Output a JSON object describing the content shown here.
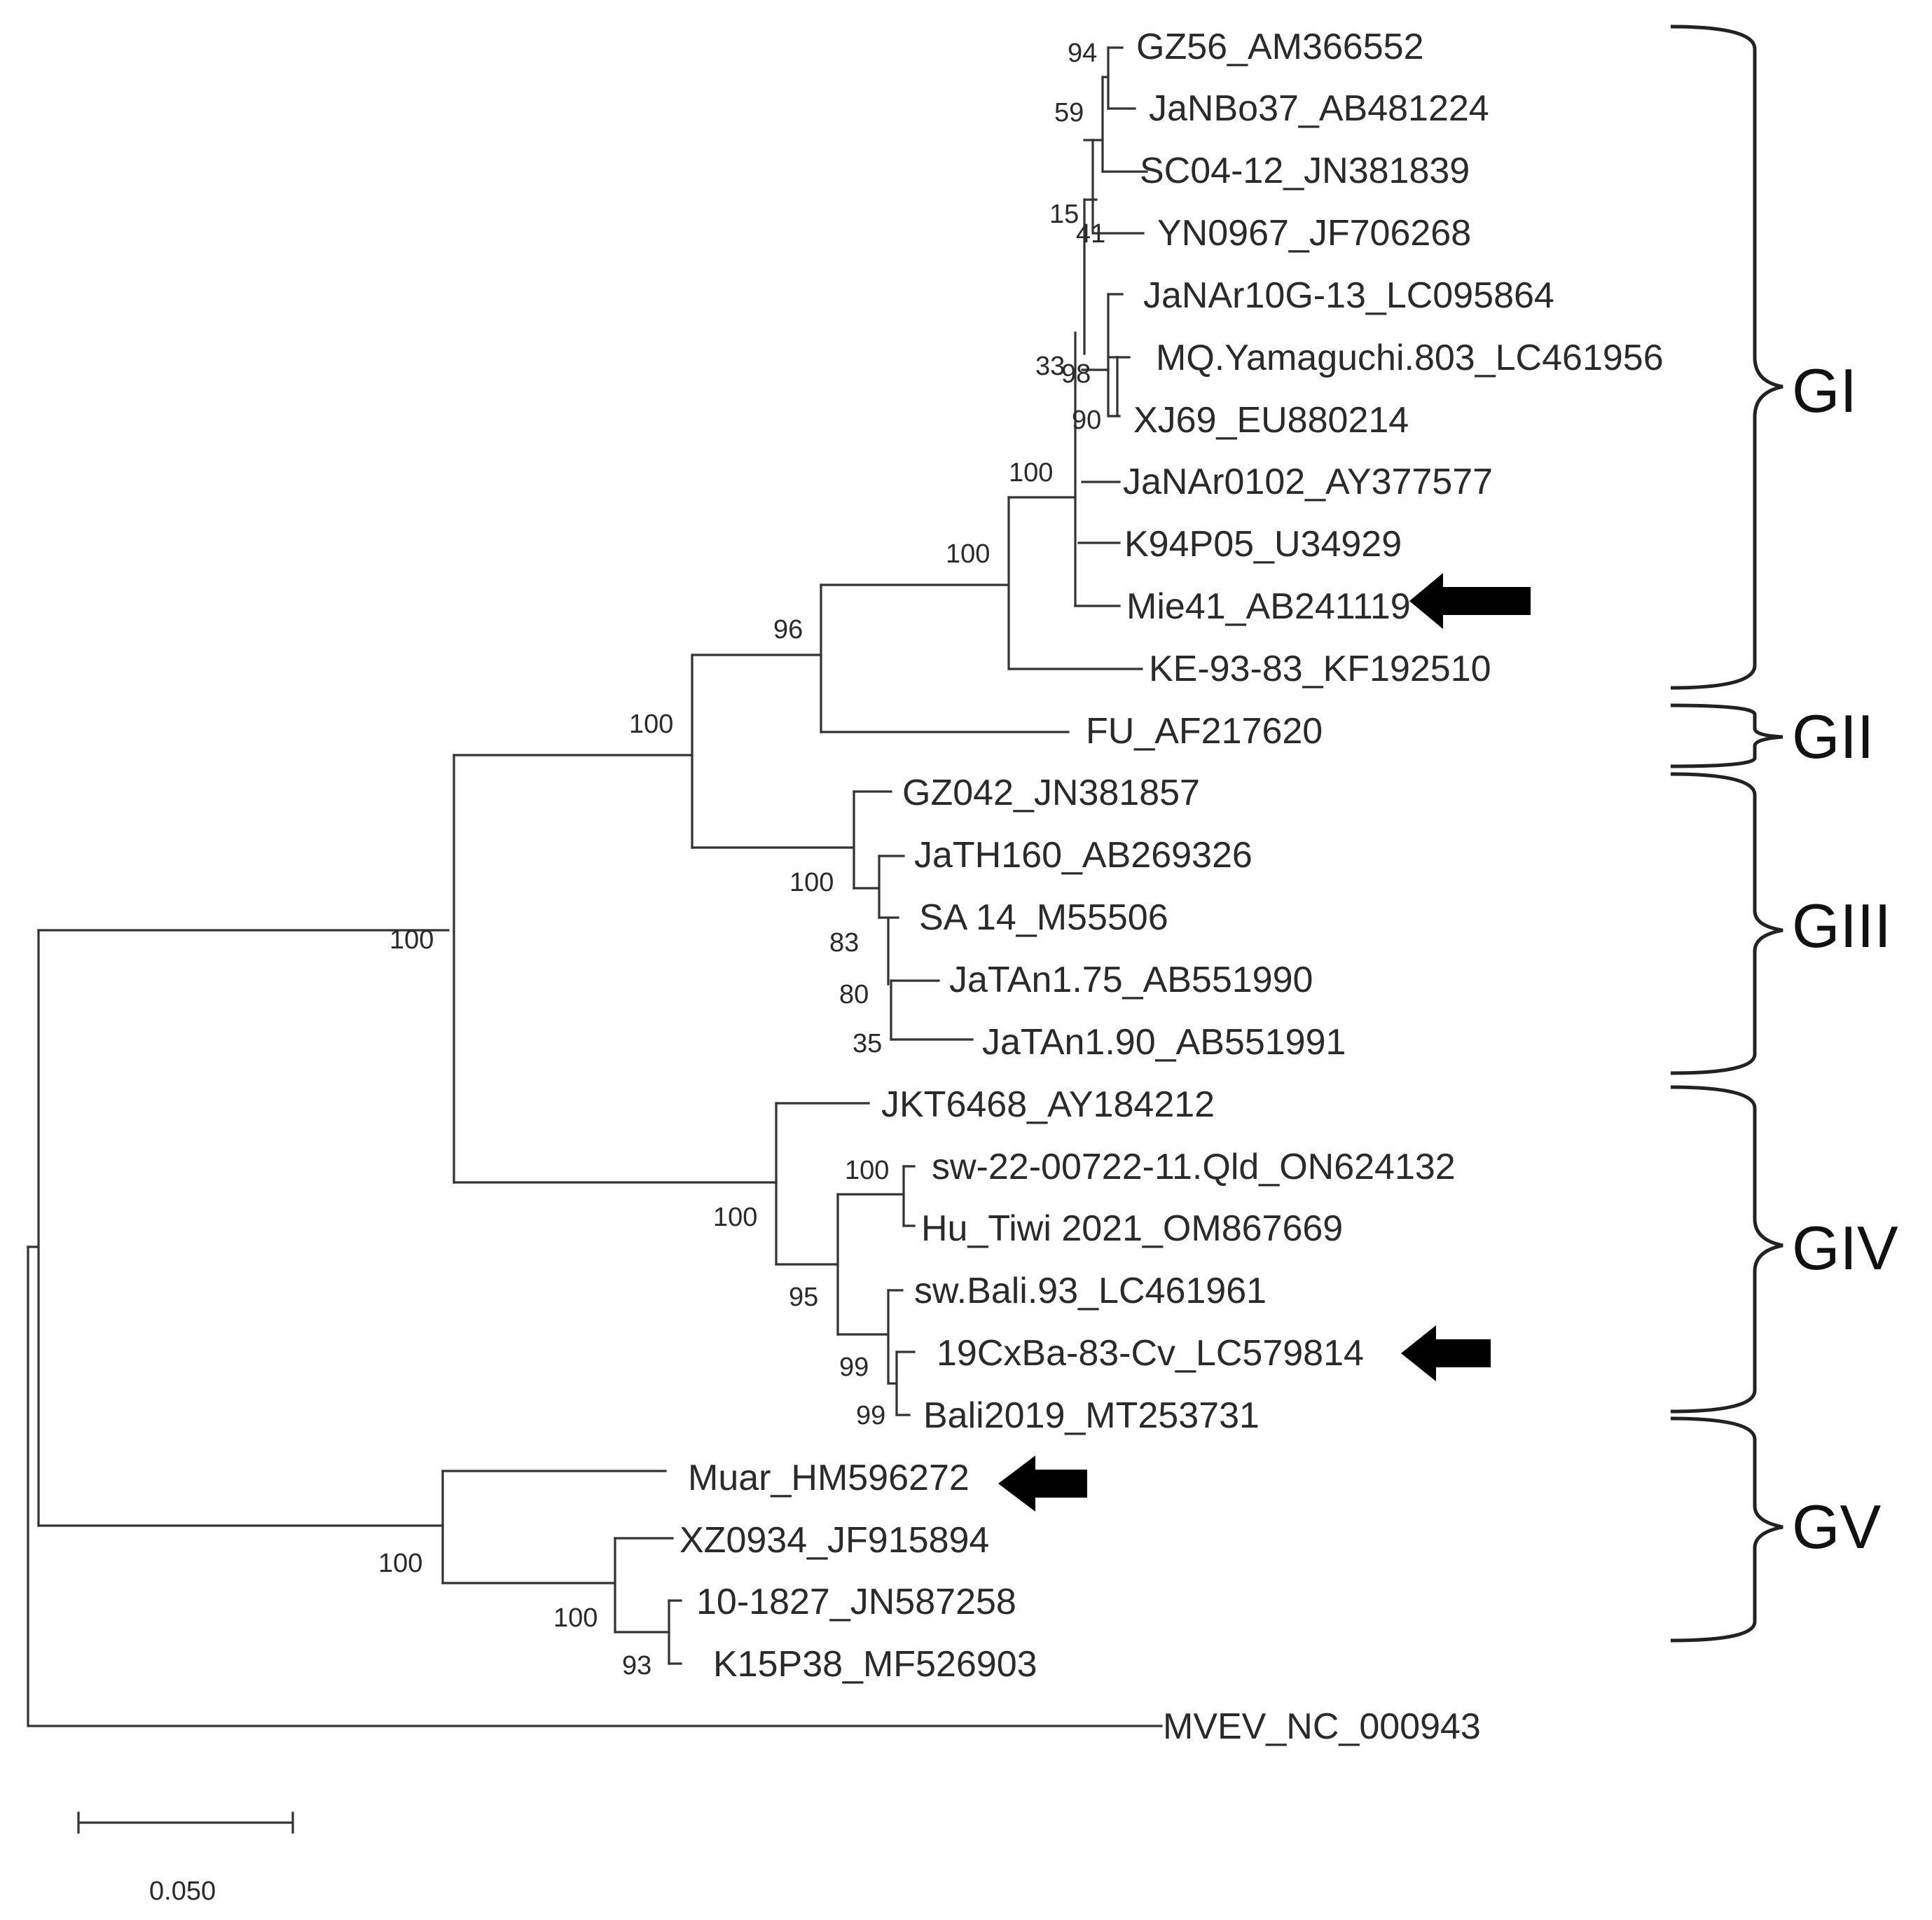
{
  "figure": {
    "type": "phylogenetic_tree",
    "scale_bar_label": "0.050",
    "colors": {
      "branch": "#333333",
      "text": "#2a2a2a",
      "arrow": "#000000",
      "background": "#ffffff"
    }
  },
  "taxa": [
    "GZ56_AM366552",
    "JaNBo37_AB481224",
    "SC04-12_JN381839",
    "YN0967_JF706268",
    "JaNAr10G-13_LC095864",
    "MQ.Yamaguchi.803_LC461956",
    "XJ69_EU880214",
    "JaNAr0102_AY377577",
    "K94P05_U34929",
    "Mie41_AB241119",
    "KE-93-83_KF192510",
    "FU_AF217620",
    "GZ042_JN381857",
    "JaTH160_AB269326",
    "SA 14_M55506",
    "JaTAn1.75_AB551990",
    "JaTAn1.90_AB551991",
    "JKT6468_AY184212",
    "sw-22-00722-11.Qld_ON624132",
    "Hu_Tiwi 2021_OM867669",
    "sw.Bali.93_LC461961",
    "19CxBa-83-Cv_LC579814",
    "Bali2019_MT253731",
    "Muar_HM596272",
    "XZ0934_JF915894",
    "10-1827_JN587258",
    "K15P38_MF526903",
    "MVEV_NC_000943"
  ],
  "bootstrap_values": [
    "94",
    "59",
    "15",
    "41",
    "33",
    "98",
    "90",
    "100",
    "100",
    "96",
    "100",
    "100",
    "100",
    "83",
    "80",
    "35",
    "100",
    "100",
    "95",
    "99",
    "99",
    "100",
    "100",
    "93"
  ],
  "genotypes": [
    "GI",
    "GII",
    "GIII",
    "GIV",
    "GV"
  ],
  "highlighted_taxa": [
    "Mie41_AB241119",
    "19CxBa-83-Cv_LC579814",
    "Muar_HM596272"
  ],
  "highlight_icon": "left-arrow-icon"
}
